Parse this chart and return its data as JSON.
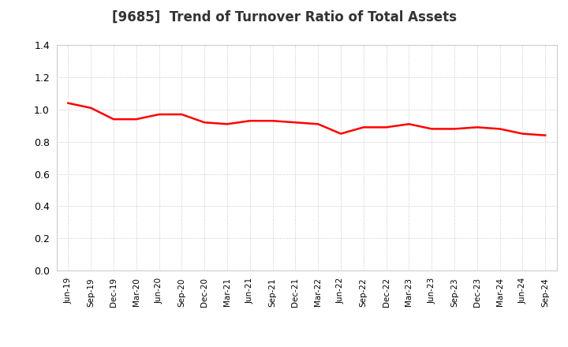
{
  "title": "[9685]  Trend of Turnover Ratio of Total Assets",
  "title_fontsize": 12,
  "title_color": "#333333",
  "line_color": "#FF0000",
  "line_width": 1.8,
  "background_color": "#FFFFFF",
  "grid_color": "#BBBBBB",
  "ylim": [
    0.0,
    1.4
  ],
  "yticks": [
    0.0,
    0.2,
    0.4,
    0.6,
    0.8,
    1.0,
    1.2,
    1.4
  ],
  "labels": [
    "Jun-19",
    "Sep-19",
    "Dec-19",
    "Mar-20",
    "Jun-20",
    "Sep-20",
    "Dec-20",
    "Mar-21",
    "Jun-21",
    "Sep-21",
    "Dec-21",
    "Mar-22",
    "Jun-22",
    "Sep-22",
    "Dec-22",
    "Mar-23",
    "Jun-23",
    "Sep-23",
    "Dec-23",
    "Mar-24",
    "Jun-24",
    "Sep-24"
  ],
  "values": [
    1.04,
    1.01,
    0.94,
    0.94,
    0.97,
    0.97,
    0.92,
    0.91,
    0.93,
    0.93,
    0.92,
    0.91,
    0.85,
    0.89,
    0.89,
    0.91,
    0.88,
    0.88,
    0.89,
    0.88,
    0.85,
    0.84
  ]
}
